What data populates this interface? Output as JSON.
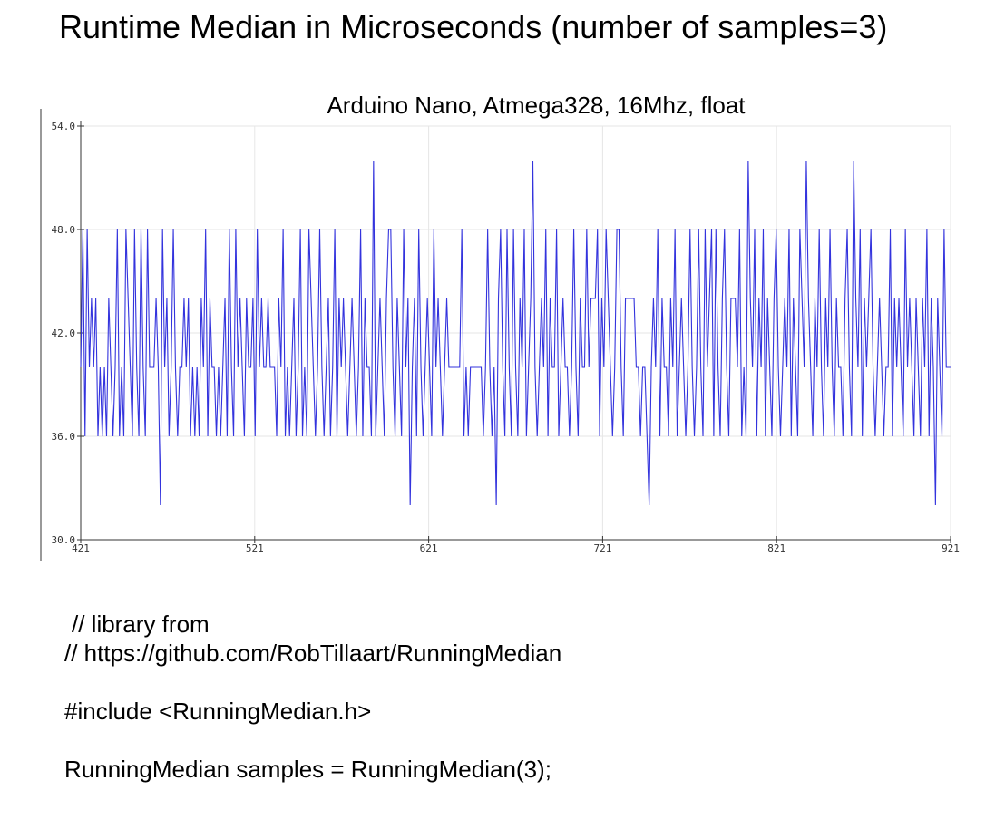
{
  "page": {
    "title": "Runtime Median in Microseconds (number of samples=3)"
  },
  "code": {
    "lines": [
      "// library from",
      "// https://github.com/RobTillaart/RunningMedian",
      "",
      "#include <RunningMedian.h>",
      "",
      "RunningMedian samples = RunningMedian(3);"
    ]
  },
  "colors": {
    "series": "#3333dd",
    "grid": "#e6e6e6",
    "axis": "#333333"
  },
  "chart_data": {
    "type": "line",
    "title": "Arduino Nano, Atmega328, 16Mhz, float",
    "xlabel": "",
    "ylabel": "",
    "xlim": [
      421,
      921
    ],
    "ylim": [
      30,
      54
    ],
    "x_ticks": [
      421,
      521,
      621,
      721,
      821,
      921
    ],
    "y_ticks": [
      30.0,
      36.0,
      42.0,
      48.0,
      54.0
    ],
    "x_tick_labels": [
      "421",
      "521",
      "621",
      "721",
      "821",
      "921"
    ],
    "y_tick_labels": [
      "30.0",
      "36.0",
      "42.0",
      "48.0",
      "54.0"
    ],
    "grid": true,
    "legend": "none",
    "series": [
      {
        "x_start": 421,
        "x_step": 1,
        "values": [
          40,
          48,
          36,
          48,
          40,
          44,
          40,
          44,
          36,
          40,
          36,
          40,
          36,
          44,
          40,
          36,
          40,
          48,
          36,
          40,
          36,
          48,
          44,
          40,
          36,
          48,
          40,
          36,
          48,
          40,
          36,
          48,
          40,
          40,
          40,
          44,
          40,
          32,
          48,
          40,
          44,
          36,
          40,
          48,
          40,
          36,
          40,
          40,
          44,
          40,
          44,
          36,
          40,
          36,
          40,
          36,
          44,
          40,
          48,
          36,
          44,
          40,
          40,
          36,
          40,
          36,
          40,
          44,
          36,
          48,
          40,
          36,
          48,
          40,
          44,
          40,
          36,
          44,
          40,
          40,
          44,
          36,
          48,
          40,
          44,
          40,
          40,
          44,
          40,
          40,
          40,
          36,
          44,
          40,
          48,
          36,
          40,
          36,
          40,
          44,
          36,
          40,
          48,
          36,
          40,
          36,
          48,
          44,
          40,
          36,
          40,
          48,
          40,
          36,
          40,
          44,
          36,
          40,
          48,
          36,
          44,
          40,
          44,
          40,
          36,
          40,
          44,
          40,
          36,
          40,
          48,
          36,
          44,
          40,
          40,
          36,
          52,
          36,
          40,
          44,
          40,
          36,
          44,
          48,
          48,
          40,
          36,
          44,
          40,
          36,
          48,
          40,
          44,
          32,
          40,
          44,
          36,
          48,
          40,
          36,
          40,
          44,
          40,
          36,
          48,
          40,
          44,
          40,
          36,
          40,
          44,
          40,
          40,
          40,
          40,
          40,
          40,
          48,
          36,
          40,
          36,
          40,
          40,
          40,
          40,
          40,
          40,
          36,
          40,
          48,
          40,
          36,
          40,
          32,
          44,
          48,
          40,
          36,
          48,
          40,
          36,
          48,
          40,
          36,
          44,
          40,
          48,
          36,
          40,
          44,
          52,
          40,
          36,
          40,
          44,
          40,
          48,
          36,
          44,
          40,
          40,
          48,
          36,
          40,
          44,
          40,
          40,
          36,
          40,
          48,
          40,
          36,
          44,
          40,
          40,
          48,
          40,
          44,
          44,
          44,
          48,
          36,
          44,
          40,
          48,
          44,
          40,
          36,
          40,
          48,
          48,
          40,
          36,
          44,
          44,
          44,
          44,
          44,
          40,
          40,
          36,
          40,
          40,
          36,
          32,
          40,
          44,
          40,
          48,
          36,
          44,
          40,
          40,
          36,
          44,
          40,
          48,
          36,
          40,
          44,
          40,
          36,
          40,
          48,
          40,
          36,
          40,
          48,
          40,
          36,
          48,
          40,
          44,
          48,
          36,
          48,
          40,
          36,
          44,
          48,
          40,
          36,
          44,
          44,
          44,
          40,
          48,
          36,
          40,
          36,
          52,
          44,
          40,
          48,
          36,
          44,
          40,
          48,
          36,
          44,
          40,
          36,
          44,
          48,
          40,
          36,
          40,
          44,
          40,
          48,
          36,
          44,
          40,
          36,
          48,
          44,
          40,
          52,
          44,
          40,
          36,
          44,
          40,
          48,
          40,
          36,
          44,
          40,
          48,
          40,
          36,
          44,
          40,
          40,
          36,
          44,
          48,
          40,
          36,
          52,
          44,
          40,
          48,
          36,
          44,
          40,
          44,
          48,
          40,
          36,
          40,
          44,
          40,
          36,
          40,
          40,
          48,
          36,
          44,
          40,
          44,
          40,
          36,
          48,
          40,
          44,
          40,
          36,
          44,
          40,
          36,
          44,
          40,
          48,
          36,
          44,
          40,
          32,
          44,
          40,
          36,
          48,
          40,
          40,
          40
        ]
      }
    ]
  }
}
